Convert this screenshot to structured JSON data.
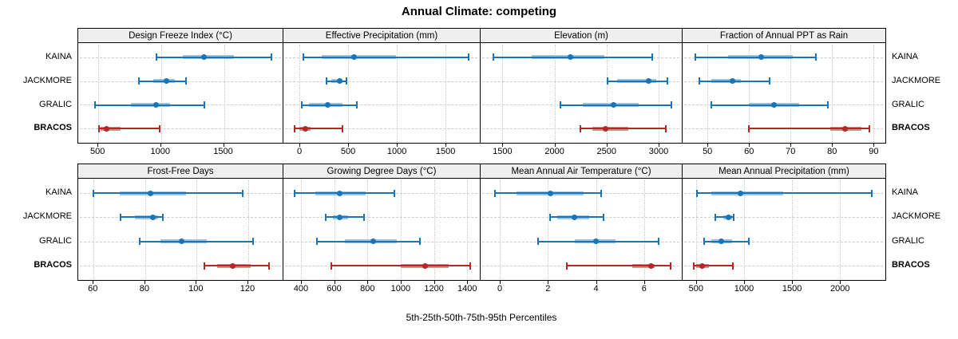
{
  "title": "Annual Climate: competing",
  "caption": "5th-25th-50th-75th-95th Percentiles",
  "sites": [
    "KAINA",
    "JACKMORE",
    "GRALIC",
    "BRACOS"
  ],
  "highlight_site": "BRACOS",
  "colors": {
    "series_blue": "#1b74b5",
    "series_blue_band": "#99c5e2",
    "highlight_red": "#b92524",
    "highlight_red_band": "#d98e88",
    "grid": "#cdcdcd",
    "strip_bg": "#efefef",
    "panel_border": "#000000"
  },
  "chart_data": {
    "type": "dotplot",
    "statistic": "percentiles",
    "percentile_levels": [
      5,
      25,
      50,
      75,
      95
    ],
    "legend_position": "none",
    "grid": "on",
    "sites": [
      "KAINA",
      "JACKMORE",
      "GRALIC",
      "BRACOS"
    ],
    "panels": [
      {
        "title": "Design Freeze Index (°C)",
        "xlim": [
          340,
          1980
        ],
        "ticks": [
          500,
          1000,
          1500
        ],
        "series": [
          {
            "name": "KAINA",
            "percentiles": [
              960,
              1175,
              1340,
              1580,
              1875
            ]
          },
          {
            "name": "JACKMORE",
            "percentiles": [
              820,
              940,
              1040,
              1110,
              1200
            ]
          },
          {
            "name": "GRALIC",
            "percentiles": [
              470,
              760,
              960,
              1070,
              1345
            ]
          },
          {
            "name": "BRACOS",
            "percentiles": [
              505,
              520,
              565,
              680,
              985
            ]
          }
        ]
      },
      {
        "title": "Effective Precipitation (mm)",
        "xlim": [
          -165,
          1860
        ],
        "ticks": [
          0,
          500,
          1000,
          1500
        ],
        "series": [
          {
            "name": "KAINA",
            "percentiles": [
              40,
              230,
              560,
              990,
              1740
            ]
          },
          {
            "name": "JACKMORE",
            "percentiles": [
              280,
              330,
              410,
              445,
              480
            ]
          },
          {
            "name": "GRALIC",
            "percentiles": [
              20,
              100,
              290,
              440,
              590
            ]
          },
          {
            "name": "BRACOS",
            "percentiles": [
              -50,
              0,
              60,
              115,
              440
            ]
          }
        ]
      },
      {
        "title": "Elevation (m)",
        "xlim": [
          1290,
          3230
        ],
        "ticks": [
          1500,
          2000,
          2500,
          3000
        ],
        "series": [
          {
            "name": "KAINA",
            "percentiles": [
              1410,
              1780,
              2150,
              2480,
              2940
            ]
          },
          {
            "name": "JACKMORE",
            "percentiles": [
              2510,
              2600,
              2905,
              2975,
              3085
            ]
          },
          {
            "name": "GRALIC",
            "percentiles": [
              2055,
              2270,
              2570,
              2810,
              3120
            ]
          },
          {
            "name": "BRACOS",
            "percentiles": [
              2250,
              2360,
              2490,
              2710,
              3070
            ]
          }
        ]
      },
      {
        "title": "Fraction of Annual PPT as Rain",
        "xlim": [
          44,
          93
        ],
        "ticks": [
          50,
          60,
          70,
          80,
          90
        ],
        "series": [
          {
            "name": "KAINA",
            "percentiles": [
              47,
              55,
              63,
              70.5,
              76
            ]
          },
          {
            "name": "JACKMORE",
            "percentiles": [
              48,
              51,
              56,
              58,
              65
            ]
          },
          {
            "name": "GRALIC",
            "percentiles": [
              51,
              60,
              66,
              72,
              79
            ]
          },
          {
            "name": "BRACOS",
            "percentiles": [
              60,
              79.5,
              83,
              87,
              89
            ]
          }
        ]
      },
      {
        "title": "Frost-Free Days",
        "xlim": [
          54,
          134
        ],
        "ticks": [
          60,
          80,
          100,
          120
        ],
        "series": [
          {
            "name": "KAINA",
            "percentiles": [
              60,
              70,
              82,
              96,
              118
            ]
          },
          {
            "name": "JACKMORE",
            "percentiles": [
              70.5,
              76,
              83,
              85,
              87
            ]
          },
          {
            "name": "GRALIC",
            "percentiles": [
              78,
              86,
              94,
              104,
              122
            ]
          },
          {
            "name": "BRACOS",
            "percentiles": [
              103,
              108,
              114,
              121,
              128
            ]
          }
        ]
      },
      {
        "title": "Growing Degree Days (°C)",
        "xlim": [
          295,
          1480
        ],
        "ticks": [
          400,
          600,
          800,
          1000,
          1200,
          1400
        ],
        "series": [
          {
            "name": "KAINA",
            "percentiles": [
              360,
              485,
              635,
              790,
              960
            ]
          },
          {
            "name": "JACKMORE",
            "percentiles": [
              550,
              590,
              635,
              685,
              780
            ]
          },
          {
            "name": "GRALIC",
            "percentiles": [
              495,
              665,
              835,
              975,
              1115
            ]
          },
          {
            "name": "BRACOS",
            "percentiles": [
              585,
              1000,
              1145,
              1290,
              1415
            ]
          }
        ]
      },
      {
        "title": "Mean Annual Air Temperature (°C)",
        "xlim": [
          -0.8,
          7.6
        ],
        "ticks": [
          0,
          2,
          4,
          6
        ],
        "series": [
          {
            "name": "KAINA",
            "percentiles": [
              -0.2,
              0.7,
              2.1,
              3.5,
              4.2
            ]
          },
          {
            "name": "JACKMORE",
            "percentiles": [
              2.1,
              2.4,
              3.1,
              3.7,
              4.3
            ]
          },
          {
            "name": "GRALIC",
            "percentiles": [
              1.6,
              3.1,
              4.0,
              4.8,
              6.6
            ]
          },
          {
            "name": "BRACOS",
            "percentiles": [
              2.8,
              5.5,
              6.3,
              6.45,
              7.1
            ]
          }
        ]
      },
      {
        "title": "Mean Annual Precipitation (mm)",
        "xlim": [
          360,
          2480
        ],
        "ticks": [
          500,
          1000,
          1500,
          2000
        ],
        "series": [
          {
            "name": "KAINA",
            "percentiles": [
              510,
              660,
              965,
              1410,
              2330
            ]
          },
          {
            "name": "JACKMORE",
            "percentiles": [
              700,
              785,
              835,
              880,
              895
            ]
          },
          {
            "name": "GRALIC",
            "percentiles": [
              585,
              660,
              760,
              875,
              1050
            ]
          },
          {
            "name": "BRACOS",
            "percentiles": [
              475,
              500,
              565,
              635,
              885
            ]
          }
        ]
      }
    ]
  }
}
